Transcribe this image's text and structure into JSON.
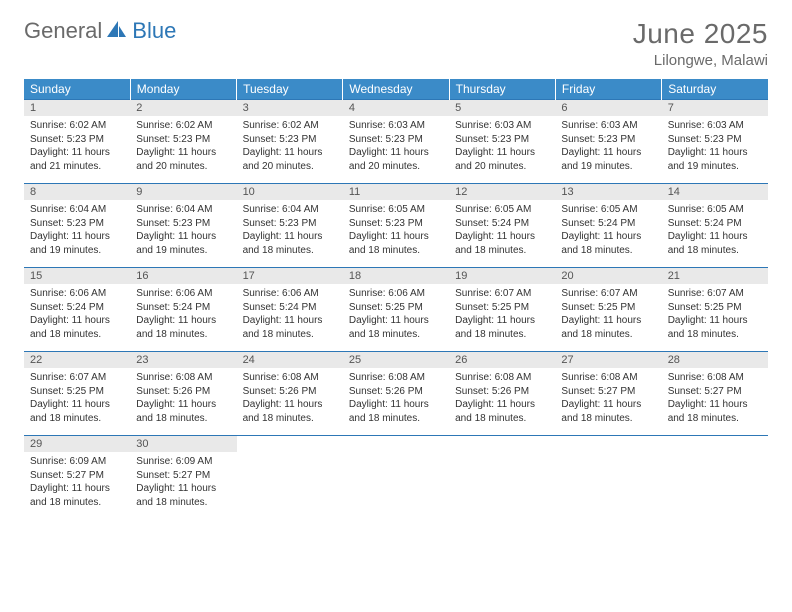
{
  "logo": {
    "word1": "General",
    "word2": "Blue"
  },
  "title": "June 2025",
  "location": "Lilongwe, Malawi",
  "colors": {
    "header_bg": "#3b8bc8",
    "header_text": "#ffffff",
    "daynum_bg": "#e9e9e9",
    "rule": "#2d77b6",
    "body_text": "#333333",
    "muted_text": "#6a6a6a"
  },
  "typography": {
    "title_fontsize": 28,
    "location_fontsize": 15,
    "weekday_fontsize": 12,
    "daynum_fontsize": 11,
    "cell_fontsize": 10
  },
  "layout": {
    "cols": 7,
    "rows": 5
  },
  "weekdays": [
    "Sunday",
    "Monday",
    "Tuesday",
    "Wednesday",
    "Thursday",
    "Friday",
    "Saturday"
  ],
  "days": [
    {
      "n": 1,
      "sunrise": "6:02 AM",
      "sunset": "5:23 PM",
      "daylight": "11 hours and 21 minutes."
    },
    {
      "n": 2,
      "sunrise": "6:02 AM",
      "sunset": "5:23 PM",
      "daylight": "11 hours and 20 minutes."
    },
    {
      "n": 3,
      "sunrise": "6:02 AM",
      "sunset": "5:23 PM",
      "daylight": "11 hours and 20 minutes."
    },
    {
      "n": 4,
      "sunrise": "6:03 AM",
      "sunset": "5:23 PM",
      "daylight": "11 hours and 20 minutes."
    },
    {
      "n": 5,
      "sunrise": "6:03 AM",
      "sunset": "5:23 PM",
      "daylight": "11 hours and 20 minutes."
    },
    {
      "n": 6,
      "sunrise": "6:03 AM",
      "sunset": "5:23 PM",
      "daylight": "11 hours and 19 minutes."
    },
    {
      "n": 7,
      "sunrise": "6:03 AM",
      "sunset": "5:23 PM",
      "daylight": "11 hours and 19 minutes."
    },
    {
      "n": 8,
      "sunrise": "6:04 AM",
      "sunset": "5:23 PM",
      "daylight": "11 hours and 19 minutes."
    },
    {
      "n": 9,
      "sunrise": "6:04 AM",
      "sunset": "5:23 PM",
      "daylight": "11 hours and 19 minutes."
    },
    {
      "n": 10,
      "sunrise": "6:04 AM",
      "sunset": "5:23 PM",
      "daylight": "11 hours and 18 minutes."
    },
    {
      "n": 11,
      "sunrise": "6:05 AM",
      "sunset": "5:23 PM",
      "daylight": "11 hours and 18 minutes."
    },
    {
      "n": 12,
      "sunrise": "6:05 AM",
      "sunset": "5:24 PM",
      "daylight": "11 hours and 18 minutes."
    },
    {
      "n": 13,
      "sunrise": "6:05 AM",
      "sunset": "5:24 PM",
      "daylight": "11 hours and 18 minutes."
    },
    {
      "n": 14,
      "sunrise": "6:05 AM",
      "sunset": "5:24 PM",
      "daylight": "11 hours and 18 minutes."
    },
    {
      "n": 15,
      "sunrise": "6:06 AM",
      "sunset": "5:24 PM",
      "daylight": "11 hours and 18 minutes."
    },
    {
      "n": 16,
      "sunrise": "6:06 AM",
      "sunset": "5:24 PM",
      "daylight": "11 hours and 18 minutes."
    },
    {
      "n": 17,
      "sunrise": "6:06 AM",
      "sunset": "5:24 PM",
      "daylight": "11 hours and 18 minutes."
    },
    {
      "n": 18,
      "sunrise": "6:06 AM",
      "sunset": "5:25 PM",
      "daylight": "11 hours and 18 minutes."
    },
    {
      "n": 19,
      "sunrise": "6:07 AM",
      "sunset": "5:25 PM",
      "daylight": "11 hours and 18 minutes."
    },
    {
      "n": 20,
      "sunrise": "6:07 AM",
      "sunset": "5:25 PM",
      "daylight": "11 hours and 18 minutes."
    },
    {
      "n": 21,
      "sunrise": "6:07 AM",
      "sunset": "5:25 PM",
      "daylight": "11 hours and 18 minutes."
    },
    {
      "n": 22,
      "sunrise": "6:07 AM",
      "sunset": "5:25 PM",
      "daylight": "11 hours and 18 minutes."
    },
    {
      "n": 23,
      "sunrise": "6:08 AM",
      "sunset": "5:26 PM",
      "daylight": "11 hours and 18 minutes."
    },
    {
      "n": 24,
      "sunrise": "6:08 AM",
      "sunset": "5:26 PM",
      "daylight": "11 hours and 18 minutes."
    },
    {
      "n": 25,
      "sunrise": "6:08 AM",
      "sunset": "5:26 PM",
      "daylight": "11 hours and 18 minutes."
    },
    {
      "n": 26,
      "sunrise": "6:08 AM",
      "sunset": "5:26 PM",
      "daylight": "11 hours and 18 minutes."
    },
    {
      "n": 27,
      "sunrise": "6:08 AM",
      "sunset": "5:27 PM",
      "daylight": "11 hours and 18 minutes."
    },
    {
      "n": 28,
      "sunrise": "6:08 AM",
      "sunset": "5:27 PM",
      "daylight": "11 hours and 18 minutes."
    },
    {
      "n": 29,
      "sunrise": "6:09 AM",
      "sunset": "5:27 PM",
      "daylight": "11 hours and 18 minutes."
    },
    {
      "n": 30,
      "sunrise": "6:09 AM",
      "sunset": "5:27 PM",
      "daylight": "11 hours and 18 minutes."
    }
  ],
  "labels": {
    "sunrise": "Sunrise:",
    "sunset": "Sunset:",
    "daylight": "Daylight:"
  }
}
